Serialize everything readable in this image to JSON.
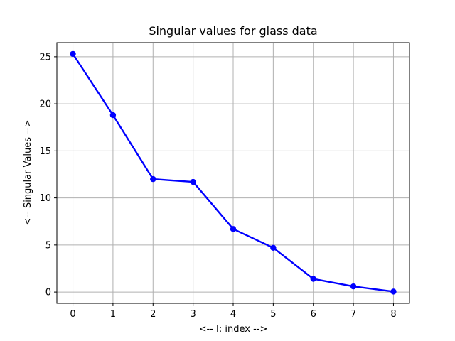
{
  "chart_data": {
    "type": "line",
    "title": "Singular values for glass data",
    "xlabel": "<-- I: index -->",
    "ylabel": "<-- Singular Values -->",
    "x": [
      0,
      1,
      2,
      3,
      4,
      5,
      6,
      7,
      8
    ],
    "y": [
      25.3,
      18.8,
      12.0,
      11.7,
      6.7,
      4.7,
      1.4,
      0.6,
      0.05
    ],
    "xticks": [
      "0",
      "1",
      "2",
      "3",
      "4",
      "5",
      "6",
      "7",
      "8"
    ],
    "yticks": [
      "0",
      "5",
      "10",
      "15",
      "20",
      "25"
    ],
    "xlim": [
      -0.4,
      8.4
    ],
    "ylim": [
      -1.2,
      26.5
    ],
    "grid": true,
    "line_color": "#0000ff",
    "marker": "circle",
    "grid_color": "#b0b0b0"
  }
}
